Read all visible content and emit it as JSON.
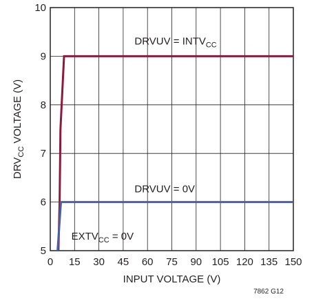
{
  "chart_data": {
    "type": "line",
    "title": "",
    "xlabel": "INPUT VOLTAGE (V)",
    "ylabel": {
      "main": "DRV",
      "sub": "CC",
      "rest": " VOLTAGE (V)"
    },
    "xlim": [
      0,
      150
    ],
    "ylim": [
      5,
      10
    ],
    "x_ticks": [
      "0",
      "15",
      "30",
      "45",
      "60",
      "75",
      "90",
      "105",
      "120",
      "135",
      "150"
    ],
    "y_ticks": [
      "5",
      "6",
      "7",
      "8",
      "9",
      "10"
    ],
    "grid": true,
    "series": [
      {
        "name": "DRVUV = INTVCC",
        "color": "#8b1a3c",
        "points": [
          [
            5.0,
            5.0
          ],
          [
            5.8,
            6.0
          ],
          [
            6.3,
            7.5
          ],
          [
            8.5,
            9.0
          ],
          [
            150,
            9.0
          ]
        ]
      },
      {
        "name": "DRVUV = 0V",
        "color": "#4a5fa4",
        "points": [
          [
            4.5,
            5.0
          ],
          [
            6.6,
            6.0
          ],
          [
            150,
            6.0
          ]
        ]
      }
    ],
    "annotations": [
      {
        "main": "DRVUV = INTV",
        "sub": "CC",
        "rest": "",
        "x": 52,
        "y": 9.24
      },
      {
        "main": "DRVUV = 0V",
        "sub": "",
        "rest": "",
        "x": 52,
        "y": 6.2
      },
      {
        "main": "EXTV",
        "sub": "CC",
        "rest": " = 0V",
        "x": 13,
        "y": 5.23
      }
    ],
    "figure_id": "7862 G12"
  }
}
